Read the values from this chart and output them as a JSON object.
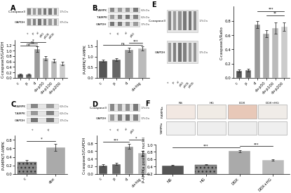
{
  "panel_A": {
    "label": "A",
    "blot_rows": [
      [
        "C-caspase3",
        "17kDa"
      ],
      [
        "GAPDH",
        "37kDa"
      ]
    ],
    "categories": [
      "c",
      "p",
      "d",
      "d+p50",
      "d+p100",
      "d+p200"
    ],
    "values": [
      0.12,
      0.13,
      1.05,
      0.72,
      0.62,
      0.52
    ],
    "errors": [
      0.03,
      0.03,
      0.1,
      0.07,
      0.06,
      0.06
    ],
    "ylabel": "C-caspase3/GAPDH",
    "ylim": [
      0,
      1.4
    ],
    "yticks": [
      0,
      0.2,
      0.4,
      0.6,
      0.8,
      1.0,
      1.2
    ],
    "bar_colors": [
      "#555555",
      "#666666",
      "#999999",
      "#aaaaaa",
      "#bbbbbb",
      "#cccccc"
    ],
    "hatches": [
      "",
      "",
      "",
      "",
      "",
      ""
    ]
  },
  "panel_B": {
    "label": "B",
    "blot_rows": [
      [
        "P-AMPK",
        "62kDa"
      ],
      [
        "T-AMPK",
        "62kDa"
      ],
      [
        "GAPDH",
        "37kDa"
      ]
    ],
    "categories": [
      "c",
      "p",
      "d",
      "d+hig"
    ],
    "values": [
      0.8,
      0.85,
      1.32,
      1.4
    ],
    "errors": [
      0.05,
      0.06,
      0.09,
      0.1
    ],
    "ylabel": "P-AMPK/T-AMPK",
    "ylim": [
      0,
      1.8
    ],
    "yticks": [
      0,
      0.5,
      1.0,
      1.5
    ],
    "bar_colors": [
      "#555555",
      "#666666",
      "#999999",
      "#bbbbbb"
    ],
    "hatches": [
      "",
      "",
      "",
      ""
    ]
  },
  "panel_C": {
    "label": "C",
    "blot_rows": [
      [
        "P-AMPK",
        "62kDa"
      ],
      [
        "T-AMPK",
        "62kDa"
      ],
      [
        "GAPDH",
        "37kDa"
      ]
    ],
    "categories": [
      "c",
      "dox"
    ],
    "values": [
      0.28,
      0.62
    ],
    "errors": [
      0.04,
      0.08
    ],
    "ylabel": "P-AMPK/T-AMPK",
    "ylim": [
      0,
      0.9
    ],
    "yticks": [
      0,
      0.2,
      0.4,
      0.6,
      0.8
    ],
    "bar_colors": [
      "#888888",
      "#aaaaaa"
    ],
    "hatches": [
      "...",
      ""
    ]
  },
  "panel_D": {
    "label": "D",
    "blot_rows": [
      [
        "C-caspase3",
        "17kDa"
      ],
      [
        "GAPDH",
        "37kDa"
      ]
    ],
    "categories": [
      "c",
      "p",
      "d",
      "d+hig"
    ],
    "values": [
      0.22,
      0.26,
      0.72,
      0.54
    ],
    "errors": [
      0.03,
      0.03,
      0.07,
      0.06
    ],
    "ylabel": "C-caspase3/GAPDH",
    "ylim": [
      0,
      1.0
    ],
    "yticks": [
      0,
      0.2,
      0.4,
      0.6,
      0.8
    ],
    "bar_colors": [
      "#555555",
      "#666666",
      "#999999",
      "#bbbbbb"
    ],
    "hatches": [
      "",
      "",
      "",
      ""
    ]
  },
  "panel_E": {
    "label": "E",
    "blot_rows": [
      [
        "C-caspase3",
        "17kDa"
      ],
      [
        "GAPDH",
        "37kDa"
      ]
    ],
    "categories": [
      "c",
      "p",
      "d",
      "d+p50",
      "d+p100",
      "d+p200"
    ],
    "values": [
      0.1,
      0.11,
      0.75,
      0.62,
      0.7,
      0.72
    ],
    "errors": [
      0.02,
      0.02,
      0.05,
      0.05,
      0.08,
      0.06
    ],
    "ylabel": "C-caspase3/Ratio",
    "ylim": [
      0,
      1.0
    ],
    "yticks": [
      0,
      0.2,
      0.4,
      0.6,
      0.8
    ],
    "bar_colors": [
      "#555555",
      "#666666",
      "#999999",
      "#aaaaaa",
      "#bbbbbb",
      "#cccccc"
    ],
    "hatches": [
      "",
      "",
      "",
      "",
      "",
      ""
    ]
  },
  "panel_F": {
    "label": "F",
    "ihc_cols": [
      "NS",
      "HG",
      "DOX",
      "DOX+HG"
    ],
    "ihc_rows": [
      "P-AMPKa",
      "T-AMPKa"
    ],
    "ihc_colors": [
      [
        "#f2e8e2",
        "#f0ebe5",
        "#e8c8b8",
        "#f0ece8"
      ],
      [
        "#f0f0f0",
        "#eeeeee",
        "#ededed",
        "#efefef"
      ]
    ],
    "categories": [
      "NS",
      "HG",
      "DOX",
      "DOX+HG"
    ],
    "values": [
      0.43,
      0.45,
      0.82,
      0.57
    ],
    "errors": [
      0.015,
      0.015,
      0.025,
      0.018
    ],
    "ylabel": "P-AMPKa positive nuclei",
    "ylim": [
      0.2,
      1.0
    ],
    "yticks": [
      0.2,
      0.4,
      0.6,
      0.8,
      1.0
    ],
    "bar_colors": [
      "#555555",
      "#888888",
      "#aaaaaa",
      "#bbbbbb"
    ],
    "hatches": [
      "",
      "...",
      "",
      ""
    ]
  },
  "background_color": "#ffffff",
  "font_size": 5,
  "label_font_size": 7
}
